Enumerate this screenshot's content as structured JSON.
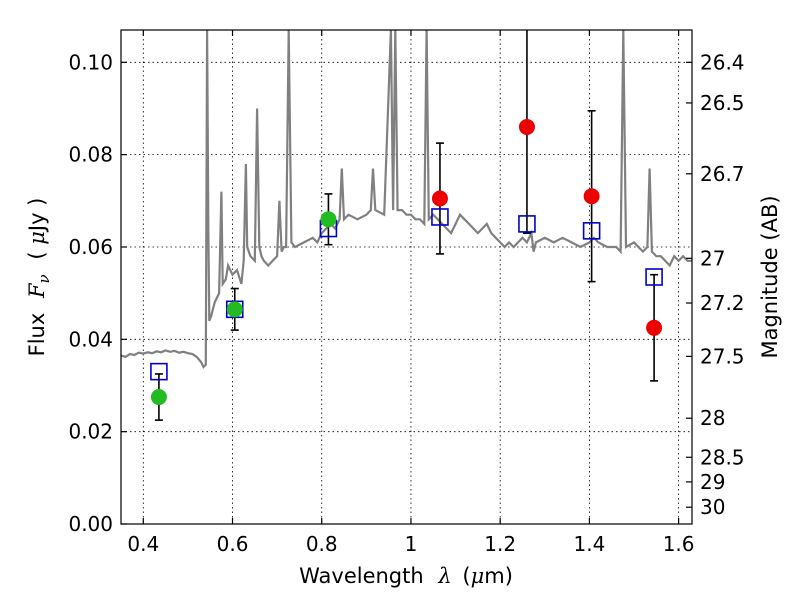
{
  "chart_data": {
    "type": "scatter",
    "xlabel": {
      "text": "Wavelength",
      "symbol": "λ",
      "unit_prefix": "(",
      "unit_greek": "μ",
      "unit_rest": "m)"
    },
    "ylabel": {
      "text": "Flux",
      "symbol": "F",
      "subscript": "ν",
      "unit_prefix": "(",
      "unit_greek": "μ",
      "unit_rest": "Jy )"
    },
    "y2label": "Magnitude (AB)",
    "xlim": [
      0.35,
      1.63
    ],
    "ylim": [
      0.0,
      0.107
    ],
    "grid": true,
    "x_ticks": [
      0.4,
      0.6,
      0.8,
      1.0,
      1.2,
      1.4,
      1.6
    ],
    "x_tick_labels": [
      "0.4",
      "0.6",
      "0.8",
      "1",
      "1.2",
      "1.4",
      "1.6"
    ],
    "y_ticks": [
      0.0,
      0.02,
      0.04,
      0.06,
      0.08,
      0.1
    ],
    "y_tick_labels": [
      "0.00",
      "0.02",
      "0.04",
      "0.06",
      "0.08",
      "0.10"
    ],
    "mag_ticks": [
      26.4,
      26.5,
      26.7,
      27,
      27.2,
      27.5,
      28,
      28.5,
      29,
      30
    ],
    "mag_tick_labels": [
      "26.4",
      "26.5",
      "26.7",
      "27",
      "27.2",
      "27.5",
      "28",
      "28.5",
      "29",
      "30"
    ],
    "colors": {
      "spectrum": "#808080",
      "model": "#0000cc",
      "optical": "#22bb22",
      "nir": "#ee0000",
      "errorbar": "#000000"
    },
    "spectrum": {
      "name": "",
      "points": [
        [
          0.35,
          0.0365
        ],
        [
          0.36,
          0.0362
        ],
        [
          0.37,
          0.0368
        ],
        [
          0.38,
          0.0366
        ],
        [
          0.39,
          0.0371
        ],
        [
          0.4,
          0.0369
        ],
        [
          0.41,
          0.0372
        ],
        [
          0.42,
          0.037
        ],
        [
          0.43,
          0.0374
        ],
        [
          0.44,
          0.0372
        ],
        [
          0.45,
          0.0376
        ],
        [
          0.46,
          0.0373
        ],
        [
          0.47,
          0.0375
        ],
        [
          0.48,
          0.0371
        ],
        [
          0.49,
          0.0373
        ],
        [
          0.5,
          0.037
        ],
        [
          0.51,
          0.0368
        ],
        [
          0.52,
          0.0362
        ],
        [
          0.53,
          0.035
        ],
        [
          0.535,
          0.034
        ],
        [
          0.54,
          0.0345
        ],
        [
          0.543,
          0.107
        ],
        [
          0.546,
          0.062
        ],
        [
          0.548,
          0.044
        ],
        [
          0.552,
          0.045
        ],
        [
          0.56,
          0.048
        ],
        [
          0.57,
          0.05
        ],
        [
          0.575,
          0.072
        ],
        [
          0.578,
          0.052
        ],
        [
          0.585,
          0.053
        ],
        [
          0.59,
          0.056
        ],
        [
          0.595,
          0.055
        ],
        [
          0.6,
          0.054
        ],
        [
          0.61,
          0.055
        ],
        [
          0.62,
          0.052
        ],
        [
          0.625,
          0.057
        ],
        [
          0.63,
          0.078
        ],
        [
          0.633,
          0.06
        ],
        [
          0.64,
          0.058
        ],
        [
          0.65,
          0.057
        ],
        [
          0.655,
          0.09
        ],
        [
          0.66,
          0.06
        ],
        [
          0.665,
          0.058
        ],
        [
          0.67,
          0.057
        ],
        [
          0.68,
          0.056
        ],
        [
          0.69,
          0.057
        ],
        [
          0.7,
          0.058
        ],
        [
          0.705,
          0.07
        ],
        [
          0.71,
          0.059
        ],
        [
          0.715,
          0.06
        ],
        [
          0.72,
          0.06
        ],
        [
          0.726,
          0.107
        ],
        [
          0.732,
          0.061
        ],
        [
          0.74,
          0.06
        ],
        [
          0.76,
          0.061
        ],
        [
          0.78,
          0.062
        ],
        [
          0.79,
          0.061
        ],
        [
          0.8,
          0.063
        ],
        [
          0.81,
          0.064
        ],
        [
          0.82,
          0.065
        ],
        [
          0.83,
          0.064
        ],
        [
          0.84,
          0.066
        ],
        [
          0.845,
          0.077
        ],
        [
          0.85,
          0.066
        ],
        [
          0.86,
          0.067
        ],
        [
          0.88,
          0.066
        ],
        [
          0.9,
          0.067
        ],
        [
          0.91,
          0.068
        ],
        [
          0.915,
          0.077
        ],
        [
          0.92,
          0.068
        ],
        [
          0.94,
          0.067
        ],
        [
          0.955,
          0.107
        ],
        [
          0.96,
          0.068
        ],
        [
          0.965,
          0.107
        ],
        [
          0.97,
          0.068
        ],
        [
          0.98,
          0.068
        ],
        [
          0.99,
          0.067
        ],
        [
          1.0,
          0.067
        ],
        [
          1.01,
          0.066
        ],
        [
          1.02,
          0.066
        ],
        [
          1.03,
          0.065
        ],
        [
          1.035,
          0.107
        ],
        [
          1.04,
          0.066
        ],
        [
          1.05,
          0.067
        ],
        [
          1.06,
          0.066
        ],
        [
          1.07,
          0.065
        ],
        [
          1.08,
          0.064
        ],
        [
          1.09,
          0.063
        ],
        [
          1.1,
          0.065
        ],
        [
          1.11,
          0.067
        ],
        [
          1.12,
          0.066
        ],
        [
          1.13,
          0.065
        ],
        [
          1.14,
          0.064
        ],
        [
          1.15,
          0.063
        ],
        [
          1.16,
          0.064
        ],
        [
          1.17,
          0.065
        ],
        [
          1.18,
          0.063
        ],
        [
          1.19,
          0.062
        ],
        [
          1.2,
          0.061
        ],
        [
          1.21,
          0.06
        ],
        [
          1.22,
          0.061
        ],
        [
          1.23,
          0.06
        ],
        [
          1.24,
          0.061
        ],
        [
          1.25,
          0.062
        ],
        [
          1.26,
          0.061
        ],
        [
          1.27,
          0.063
        ],
        [
          1.275,
          0.059
        ],
        [
          1.28,
          0.061
        ],
        [
          1.3,
          0.062
        ],
        [
          1.32,
          0.061
        ],
        [
          1.34,
          0.062
        ],
        [
          1.36,
          0.061
        ],
        [
          1.38,
          0.06
        ],
        [
          1.4,
          0.061
        ],
        [
          1.41,
          0.062
        ],
        [
          1.42,
          0.061
        ],
        [
          1.44,
          0.06
        ],
        [
          1.46,
          0.06
        ],
        [
          1.47,
          0.059
        ],
        [
          1.476,
          0.107
        ],
        [
          1.482,
          0.06
        ],
        [
          1.5,
          0.061
        ],
        [
          1.52,
          0.059
        ],
        [
          1.53,
          0.06
        ],
        [
          1.535,
          0.077
        ],
        [
          1.54,
          0.059
        ],
        [
          1.55,
          0.058
        ],
        [
          1.56,
          0.058
        ],
        [
          1.57,
          0.057
        ],
        [
          1.58,
          0.056
        ],
        [
          1.59,
          0.058
        ],
        [
          1.6,
          0.057
        ],
        [
          1.61,
          0.058
        ],
        [
          1.62,
          0.057
        ],
        [
          1.63,
          0.057
        ]
      ]
    },
    "series": [
      {
        "name": "",
        "marker": "square",
        "color_key": "model",
        "points": [
          [
            0.435,
            0.033
          ],
          [
            0.605,
            0.0465
          ],
          [
            0.815,
            0.064
          ],
          [
            1.065,
            0.0665
          ],
          [
            1.26,
            0.065
          ],
          [
            1.405,
            0.0635
          ],
          [
            1.545,
            0.0535
          ]
        ]
      },
      {
        "name": "",
        "marker": "circle",
        "color_key": "optical",
        "points": [
          [
            0.435,
            0.0275
          ],
          [
            0.605,
            0.0465
          ],
          [
            0.815,
            0.066
          ]
        ],
        "errors": [
          0.005,
          0.0045,
          0.0055
        ]
      },
      {
        "name": "",
        "marker": "circle",
        "color_key": "nir",
        "points": [
          [
            1.065,
            0.0705
          ],
          [
            1.26,
            0.086
          ],
          [
            1.405,
            0.071
          ],
          [
            1.545,
            0.0425
          ]
        ],
        "errors": [
          0.012,
          0.023,
          0.0185,
          0.0115
        ]
      }
    ]
  }
}
